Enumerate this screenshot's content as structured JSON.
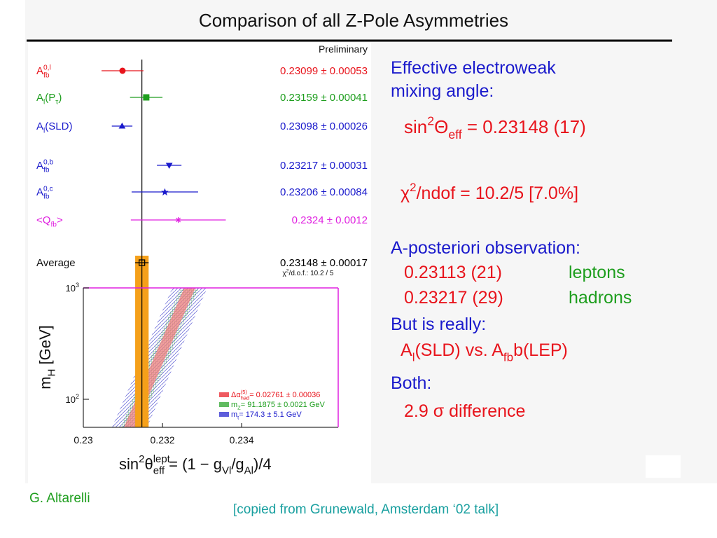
{
  "title": "Comparison of all Z-Pole Asymmetries",
  "plot": {
    "type": "error-bar",
    "note": "Preliminary",
    "measurements": [
      {
        "label": [
          {
            "text": "A"
          },
          {
            "text": "0,l",
            "pos": "sup"
          },
          {
            "text": "fb",
            "pos": "sub"
          }
        ],
        "value": 0.23099,
        "error": 0.00053,
        "value_label": "0.23099 ± 0.00053",
        "color": "#e8141c",
        "marker": "circle"
      },
      {
        "label": [
          {
            "text": "A"
          },
          {
            "text": "l",
            "pos": "sub"
          },
          {
            "text": "(P"
          },
          {
            "text": "τ",
            "pos": "sub"
          },
          {
            "text": ")"
          }
        ],
        "value": 0.23159,
        "error": 0.00041,
        "value_label": "0.23159 ± 0.00041",
        "color": "#1e9e1e",
        "marker": "square"
      },
      {
        "label": [
          {
            "text": "A"
          },
          {
            "text": "l",
            "pos": "sub"
          },
          {
            "text": "(SLD)"
          }
        ],
        "value": 0.23098,
        "error": 0.00026,
        "value_label": "0.23098 ± 0.00026",
        "color": "#1a1acc",
        "marker": "triangle-up"
      },
      {
        "label": [
          {
            "text": "A"
          },
          {
            "text": "0,b",
            "pos": "sup"
          },
          {
            "text": "fb",
            "pos": "sub"
          }
        ],
        "value": 0.23217,
        "error": 0.00031,
        "value_label": "0.23217 ± 0.00031",
        "color": "#1a1acc",
        "marker": "triangle-down"
      },
      {
        "label": [
          {
            "text": "A"
          },
          {
            "text": "0,c",
            "pos": "sup"
          },
          {
            "text": "fb",
            "pos": "sub"
          }
        ],
        "value": 0.23206,
        "error": 0.00084,
        "value_label": "0.23206 ± 0.00084",
        "color": "#1a1acc",
        "marker": "star"
      },
      {
        "label": [
          {
            "text": "<Q"
          },
          {
            "text": "fb",
            "pos": "sub"
          },
          {
            "text": ">"
          }
        ],
        "value": 0.2324,
        "error": 0.0012,
        "value_label": "0.2324 ± 0.0012",
        "color": "#e020e0",
        "marker": "asterisk"
      },
      {
        "label": [
          {
            "text": "Average"
          }
        ],
        "value": 0.23148,
        "error": 0.00017,
        "value_label": "0.23148 ± 0.00017",
        "color": "#000000",
        "marker": "open-square"
      }
    ],
    "chi2_note": [
      {
        "text": "χ"
      },
      {
        "text": "2",
        "pos": "sup"
      },
      {
        "text": "/d.o.f.: 10.2 / 5"
      }
    ],
    "band_color": "#f5a01a",
    "xlim": [
      0.23,
      0.23644
    ],
    "xticks": [
      0.23,
      0.232,
      0.234
    ],
    "ylim": [
      56,
      1000
    ],
    "log_y": true,
    "yticks": [
      {
        "value": 100,
        "label": "10",
        "exponent": "2"
      },
      {
        "value": 1000,
        "label": "10",
        "exponent": "3"
      }
    ],
    "ylabel": [
      {
        "text": "m"
      },
      {
        "text": "H",
        "pos": "sub"
      },
      {
        "text": "   [GeV]"
      }
    ],
    "xlabel": [
      {
        "text": "sin"
      },
      {
        "text": "2",
        "pos": "sup"
      },
      {
        "text": "θ"
      },
      {
        "text": "lept",
        "pos": "sup"
      },
      {
        "text": "eff",
        "pos": "sub"
      },
      {
        "text": " = (1 − g"
      },
      {
        "text": "Vl",
        "pos": "sub"
      },
      {
        "text": "/g"
      },
      {
        "text": "Al",
        "pos": "sub"
      },
      {
        "text": ")/4"
      }
    ],
    "legend": [
      {
        "color": "#e8141c",
        "segments": [
          {
            "text": "Δα"
          },
          {
            "text": "(5)",
            "pos": "sup"
          },
          {
            "text": "had",
            "pos": "sub"
          },
          {
            "text": "= 0.02761 ± 0.00036"
          }
        ]
      },
      {
        "color": "#1e9e1e",
        "segments": [
          {
            "text": "m"
          },
          {
            "text": "Z",
            "pos": "sub"
          },
          {
            "text": "= 91.1875 ± 0.0021 GeV"
          }
        ]
      },
      {
        "color": "#1a1acc",
        "segments": [
          {
            "text": "m"
          },
          {
            "text": "t",
            "pos": "sub"
          },
          {
            "text": "= 174.3 ± 5.1 GeV"
          }
        ]
      }
    ]
  },
  "summary": {
    "heading": [
      "Effective electroweak",
      "mixing  angle:"
    ],
    "sin2": [
      {
        "text": "sin"
      },
      {
        "text": "2",
        "pos": "sup"
      },
      {
        "text": "Θ"
      },
      {
        "text": "eff",
        "pos": "sub"
      },
      {
        "text": " = 0.23148 (17)"
      }
    ],
    "chi2": [
      {
        "text": "χ"
      },
      {
        "text": "2",
        "pos": "sup"
      },
      {
        "text": "/ndof = 10.2/5  [7.0%]"
      }
    ],
    "posteriori": "A-posteriori observation:",
    "observations": [
      {
        "value": "0.23113 (21)",
        "kind": "leptons"
      },
      {
        "value": "0.23217 (29)",
        "kind": "hadrons"
      }
    ],
    "really": "But is really:",
    "comparison": [
      {
        "text": "A"
      },
      {
        "text": "l",
        "pos": "sub"
      },
      {
        "text": "(SLD) vs. A"
      },
      {
        "text": "fb",
        "pos": "sub"
      },
      {
        "text": "b(LEP)"
      }
    ],
    "both": "Both:",
    "difference": "2.9 σ difference"
  },
  "credit": "G. Altarelli",
  "source": "[copied from Grunewald, Amsterdam ‘02 talk]"
}
